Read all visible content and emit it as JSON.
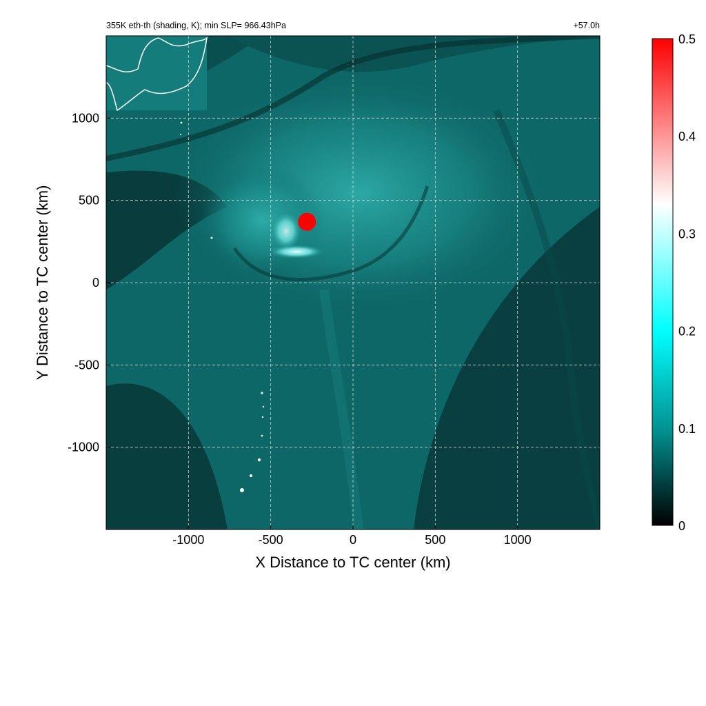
{
  "chart_data": {
    "type": "heatmap",
    "title_left": "355K eth-th (shading, K); min SLP= 966.43hPa",
    "title_right": "+57.0h",
    "xlabel": "X Distance to TC center (km)",
    "ylabel": "Y Distance to TC center (km)",
    "xlim": [
      -1500,
      1500
    ],
    "ylim": [
      -1500,
      1500
    ],
    "xticks": [
      -1000,
      -500,
      0,
      500,
      1000
    ],
    "yticks": [
      -1000,
      -500,
      0,
      500,
      1000
    ],
    "xtick_labels": [
      "-1000",
      "-500",
      "0",
      "500",
      "1000"
    ],
    "ytick_labels": [
      "-1000",
      "-500",
      "0",
      "500",
      "1000"
    ],
    "grid": true,
    "colorbar": {
      "min": 0,
      "max": 0.5,
      "ticks": [
        0,
        0.1,
        0.2,
        0.3,
        0.4,
        0.5
      ],
      "tick_labels": [
        "0",
        "0.1",
        "0.2",
        "0.3",
        "0.4",
        "0.5"
      ],
      "colors": [
        {
          "value": 0,
          "color": "#000000"
        },
        {
          "value": 0.1,
          "color": "#009494"
        },
        {
          "value": 0.2,
          "color": "#00ffff"
        },
        {
          "value": 0.33,
          "color": "#ffffff"
        },
        {
          "value": 0.5,
          "color": "#ff0000"
        }
      ]
    },
    "features": [
      {
        "name": "tc-core-maximum",
        "x": -280,
        "y": 370,
        "value": 0.5
      },
      {
        "name": "bright-rainband",
        "x": -330,
        "y": 190,
        "value": 0.3
      }
    ]
  },
  "colors": {
    "background_field": "#0f6e6e",
    "dark_band": "#062a2a",
    "coastline": "#ffffff",
    "grid": "#cfcfcf"
  }
}
